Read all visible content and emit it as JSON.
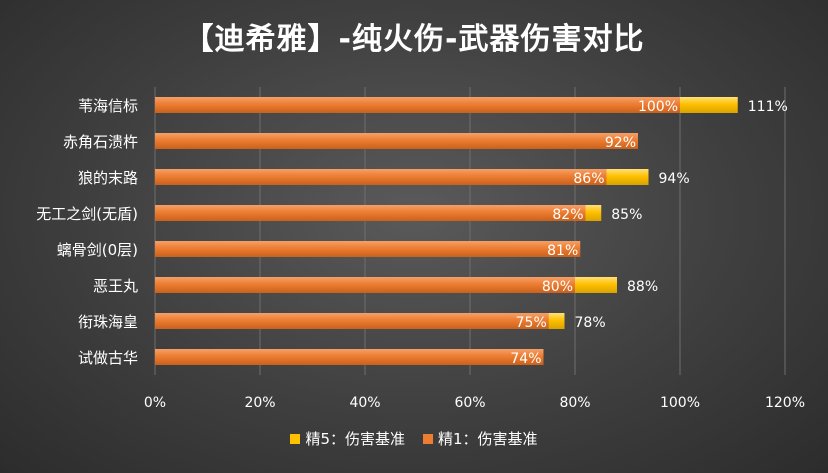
{
  "chart_data": {
    "type": "bar",
    "orientation": "horizontal",
    "stacked_overlay": true,
    "title": "【迪希雅】-纯火伤-武器伤害对比",
    "categories": [
      "苇海信标",
      "赤角石溃杵",
      "狼的末路",
      "无工之剑(无盾)",
      "螭骨剑(0层)",
      "恶王丸",
      "衔珠海皇",
      "试做古华"
    ],
    "series": [
      {
        "name": "精1：伤害基准",
        "color": "#ed7d31",
        "values": [
          100,
          92,
          86,
          82,
          81,
          80,
          75,
          74
        ],
        "labels": [
          "100%",
          "92%",
          "86%",
          "82%",
          "81%",
          "80%",
          "75%",
          "74%"
        ]
      },
      {
        "name": "精5：伤害基准",
        "color": "#ffc000",
        "values": [
          111,
          null,
          94,
          85,
          null,
          88,
          78,
          null
        ],
        "labels": [
          "111%",
          "",
          "94%",
          "85%",
          "",
          "88%",
          "78%",
          ""
        ]
      }
    ],
    "xlim": [
      0,
      120
    ],
    "xticks": [
      "0%",
      "20%",
      "40%",
      "60%",
      "80%",
      "100%",
      "120%"
    ],
    "xtick_values": [
      0,
      20,
      40,
      60,
      80,
      100,
      120
    ],
    "grid": true,
    "legend_position": "bottom",
    "legend": [
      {
        "label": "精5：伤害基准",
        "color": "#ffc000"
      },
      {
        "label": "精1：伤害基准",
        "color": "#ed7d31"
      }
    ]
  }
}
